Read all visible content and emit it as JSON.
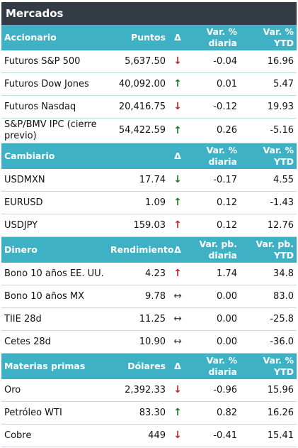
{
  "title": "Mercados",
  "sections": [
    {
      "headers": [
        "Accionario",
        "Puntos",
        "Δ",
        "Var. % diaria",
        "Var. % YTD"
      ],
      "rows": [
        {
          "name": "Futuros S&P 500",
          "value": "5,637.50",
          "dir": "down",
          "daily": "-0.04",
          "ytd": "16.96"
        },
        {
          "name": "Futuros Dow Jones",
          "value": "40,092.00",
          "dir": "up",
          "daily": "0.01",
          "ytd": "5.47"
        },
        {
          "name": "Futuros Nasdaq",
          "value": "20,416.75",
          "dir": "down",
          "daily": "-0.12",
          "ytd": "19.93"
        },
        {
          "name": "S&P/BMV IPC (cierre previo)",
          "value": "54,422.59",
          "dir": "up",
          "daily": "0.26",
          "ytd": "-5.16"
        }
      ]
    },
    {
      "headers": [
        "Cambiario",
        "",
        "Δ",
        "Var. % diaria",
        "Var. % YTD"
      ],
      "rows": [
        {
          "name": "USDMXN",
          "value": "17.74",
          "dir": "down-green",
          "daily": "-0.17",
          "ytd": "4.55"
        },
        {
          "name": "EURUSD",
          "value": "1.09",
          "dir": "up",
          "daily": "0.12",
          "ytd": "-1.43"
        },
        {
          "name": "USDJPY",
          "value": "159.03",
          "dir": "up-red",
          "daily": "0.12",
          "ytd": "12.76"
        }
      ]
    },
    {
      "headers": [
        "Dinero",
        "Rendimiento",
        "Δ",
        "Var. pb. diaria",
        "Var. pb. YTD"
      ],
      "rows": [
        {
          "name": "Bono 10 años EE. UU.",
          "value": "4.23",
          "dir": "up-red",
          "daily": "1.74",
          "ytd": "34.8"
        },
        {
          "name": "Bono 10 años MX",
          "value": "9.78",
          "dir": "flat",
          "daily": "0.00",
          "ytd": "83.0"
        },
        {
          "name": "TIIE 28d",
          "value": "11.25",
          "dir": "flat",
          "daily": "0.00",
          "ytd": "-25.8"
        },
        {
          "name": "Cetes 28d",
          "value": "10.90",
          "dir": "flat",
          "daily": "0.00",
          "ytd": "-36.0"
        }
      ]
    },
    {
      "headers": [
        "Materias primas",
        "Dólares",
        "Δ",
        "Var. % diaria",
        "Var. % YTD"
      ],
      "rows": [
        {
          "name": "Oro",
          "value": "2,392.33",
          "dir": "down",
          "daily": "-0.96",
          "ytd": "15.96"
        },
        {
          "name": "Petróleo WTI",
          "value": "83.30",
          "dir": "up",
          "daily": "0.82",
          "ytd": "16.26"
        },
        {
          "name": "Cobre",
          "value": "449",
          "dir": "down",
          "daily": "-0.41",
          "ytd": "15.41"
        }
      ]
    }
  ],
  "arrows": {
    "up": "↑",
    "down": "↓",
    "flat": "↔"
  }
}
